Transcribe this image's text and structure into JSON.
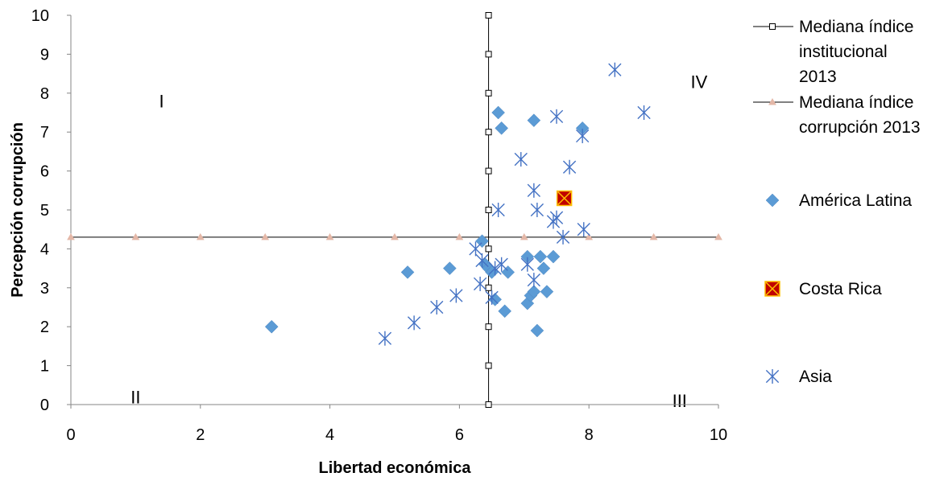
{
  "chart_data": {
    "type": "scatter",
    "xlabel": "Libertad económica",
    "ylabel": "Percepción corrupción",
    "xlim": [
      0,
      10
    ],
    "ylim": [
      0,
      10
    ],
    "x_ticks": [
      "0",
      "2",
      "4",
      "6",
      "8",
      "10"
    ],
    "y_ticks": [
      "0",
      "1",
      "2",
      "3",
      "4",
      "5",
      "6",
      "7",
      "8",
      "9",
      "10"
    ],
    "grid": false,
    "legend_position": "right",
    "quadrant_labels": [
      {
        "label": "I",
        "x": 1.4,
        "y": 7.8
      },
      {
        "label": "II",
        "x": 1.0,
        "y": 0.2
      },
      {
        "label": "III",
        "x": 9.4,
        "y": 0.1
      },
      {
        "label": "IV",
        "x": 9.7,
        "y": 8.3
      }
    ],
    "series": [
      {
        "name": "Mediana índice institucional 2013",
        "kind": "line",
        "marker": "square",
        "color": "#000000",
        "points": [
          [
            6.45,
            0
          ],
          [
            6.45,
            1
          ],
          [
            6.45,
            2
          ],
          [
            6.45,
            3
          ],
          [
            6.45,
            4
          ],
          [
            6.45,
            5
          ],
          [
            6.45,
            6
          ],
          [
            6.45,
            7
          ],
          [
            6.45,
            8
          ],
          [
            6.45,
            9
          ],
          [
            6.45,
            10
          ]
        ]
      },
      {
        "name": "Mediana índice corrupción 2013",
        "kind": "line",
        "marker": "triangle",
        "color": "#000000",
        "marker_color": "#e4b8a8",
        "points": [
          [
            0,
            4.3
          ],
          [
            1,
            4.3
          ],
          [
            2,
            4.3
          ],
          [
            3,
            4.3
          ],
          [
            4,
            4.3
          ],
          [
            5,
            4.3
          ],
          [
            6,
            4.3
          ],
          [
            7,
            4.3
          ],
          [
            8,
            4.3
          ],
          [
            9,
            4.3
          ],
          [
            10,
            4.3
          ]
        ]
      },
      {
        "name": "América Latina",
        "kind": "scatter",
        "marker": "diamond",
        "color": "#5b9bd5",
        "points": [
          [
            3.1,
            2.0
          ],
          [
            5.2,
            3.4
          ],
          [
            5.85,
            3.5
          ],
          [
            6.35,
            4.2
          ],
          [
            6.4,
            3.6
          ],
          [
            6.45,
            3.5
          ],
          [
            6.5,
            3.4
          ],
          [
            6.55,
            2.7
          ],
          [
            6.6,
            7.5
          ],
          [
            6.65,
            7.1
          ],
          [
            6.7,
            2.4
          ],
          [
            6.75,
            3.4
          ],
          [
            7.05,
            2.6
          ],
          [
            7.05,
            3.8
          ],
          [
            7.1,
            2.8
          ],
          [
            7.15,
            2.9
          ],
          [
            7.15,
            7.3
          ],
          [
            7.2,
            1.9
          ],
          [
            7.25,
            3.8
          ],
          [
            7.3,
            3.5
          ],
          [
            7.35,
            2.9
          ],
          [
            7.45,
            3.8
          ],
          [
            7.9,
            7.1
          ]
        ]
      },
      {
        "name": "Costa Rica",
        "kind": "scatter",
        "marker": "x-box",
        "color": "#c00000",
        "fill": "#c00000",
        "stroke": "#ffc000",
        "points": [
          [
            7.62,
            5.3
          ]
        ]
      },
      {
        "name": "Asia",
        "kind": "scatter",
        "marker": "asterisk",
        "color": "#4472c4",
        "points": [
          [
            4.85,
            1.7
          ],
          [
            5.3,
            2.1
          ],
          [
            5.65,
            2.5
          ],
          [
            5.95,
            2.8
          ],
          [
            6.25,
            4.0
          ],
          [
            6.32,
            3.1
          ],
          [
            6.35,
            3.7
          ],
          [
            6.5,
            2.75
          ],
          [
            6.55,
            3.5
          ],
          [
            6.6,
            5.0
          ],
          [
            6.65,
            3.6
          ],
          [
            6.95,
            6.3
          ],
          [
            7.05,
            3.6
          ],
          [
            7.15,
            3.2
          ],
          [
            7.15,
            5.5
          ],
          [
            7.2,
            5.0
          ],
          [
            7.45,
            4.7
          ],
          [
            7.5,
            4.8
          ],
          [
            7.5,
            7.4
          ],
          [
            7.6,
            4.3
          ],
          [
            7.7,
            6.1
          ],
          [
            7.9,
            6.9
          ],
          [
            7.92,
            4.5
          ],
          [
            8.4,
            8.6
          ],
          [
            8.85,
            7.5
          ]
        ]
      }
    ]
  }
}
